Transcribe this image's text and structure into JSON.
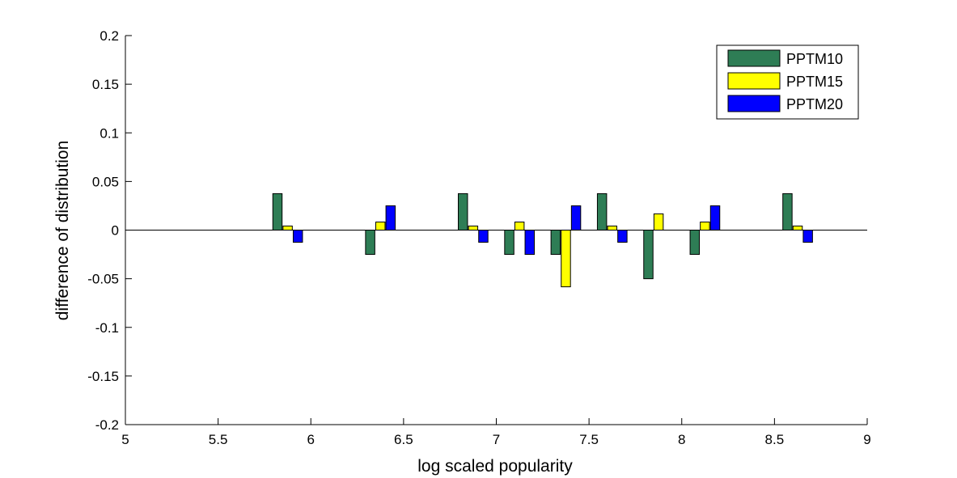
{
  "chart_data": {
    "type": "bar",
    "xlabel": "log scaled popularity",
    "ylabel": "difference of distribution",
    "xlim": [
      5,
      9
    ],
    "ylim": [
      -0.2,
      0.2
    ],
    "x_ticks": [
      5,
      5.5,
      6,
      6.5,
      7,
      7.5,
      8,
      8.5,
      9
    ],
    "x_tick_labels": [
      "5",
      "5.5",
      "6",
      "6.5",
      "7",
      "7.5",
      "8",
      "8.5",
      "9"
    ],
    "y_ticks": [
      -0.2,
      -0.15,
      -0.1,
      -0.05,
      0,
      0.05,
      0.1,
      0.15,
      0.2
    ],
    "y_tick_labels": [
      "-0.2",
      "-0.15",
      "-0.1",
      "-0.05",
      "0",
      "0.05",
      "0.1",
      "0.15",
      "0.2"
    ],
    "grid": false,
    "legend_position": "top-right",
    "x": [
      5.875,
      6.375,
      6.875,
      7.125,
      7.375,
      7.625,
      7.875,
      8.125,
      8.625
    ],
    "series": [
      {
        "name": "PPTM10",
        "color": "#2e7d55",
        "values": [
          0.0375,
          -0.025,
          0.0375,
          -0.025,
          -0.025,
          0.0375,
          -0.05,
          -0.025,
          0.0375
        ]
      },
      {
        "name": "PPTM15",
        "color": "#ffff00",
        "values": [
          0.0042,
          0.0083,
          0.0042,
          0.0083,
          -0.0583,
          0.0042,
          0.0167,
          0.0083,
          0.0042
        ]
      },
      {
        "name": "PPTM20",
        "color": "#0000ff",
        "values": [
          -0.0125,
          0.025,
          -0.0125,
          -0.025,
          0.025,
          -0.0125,
          0,
          0.025,
          -0.0125
        ]
      }
    ]
  }
}
